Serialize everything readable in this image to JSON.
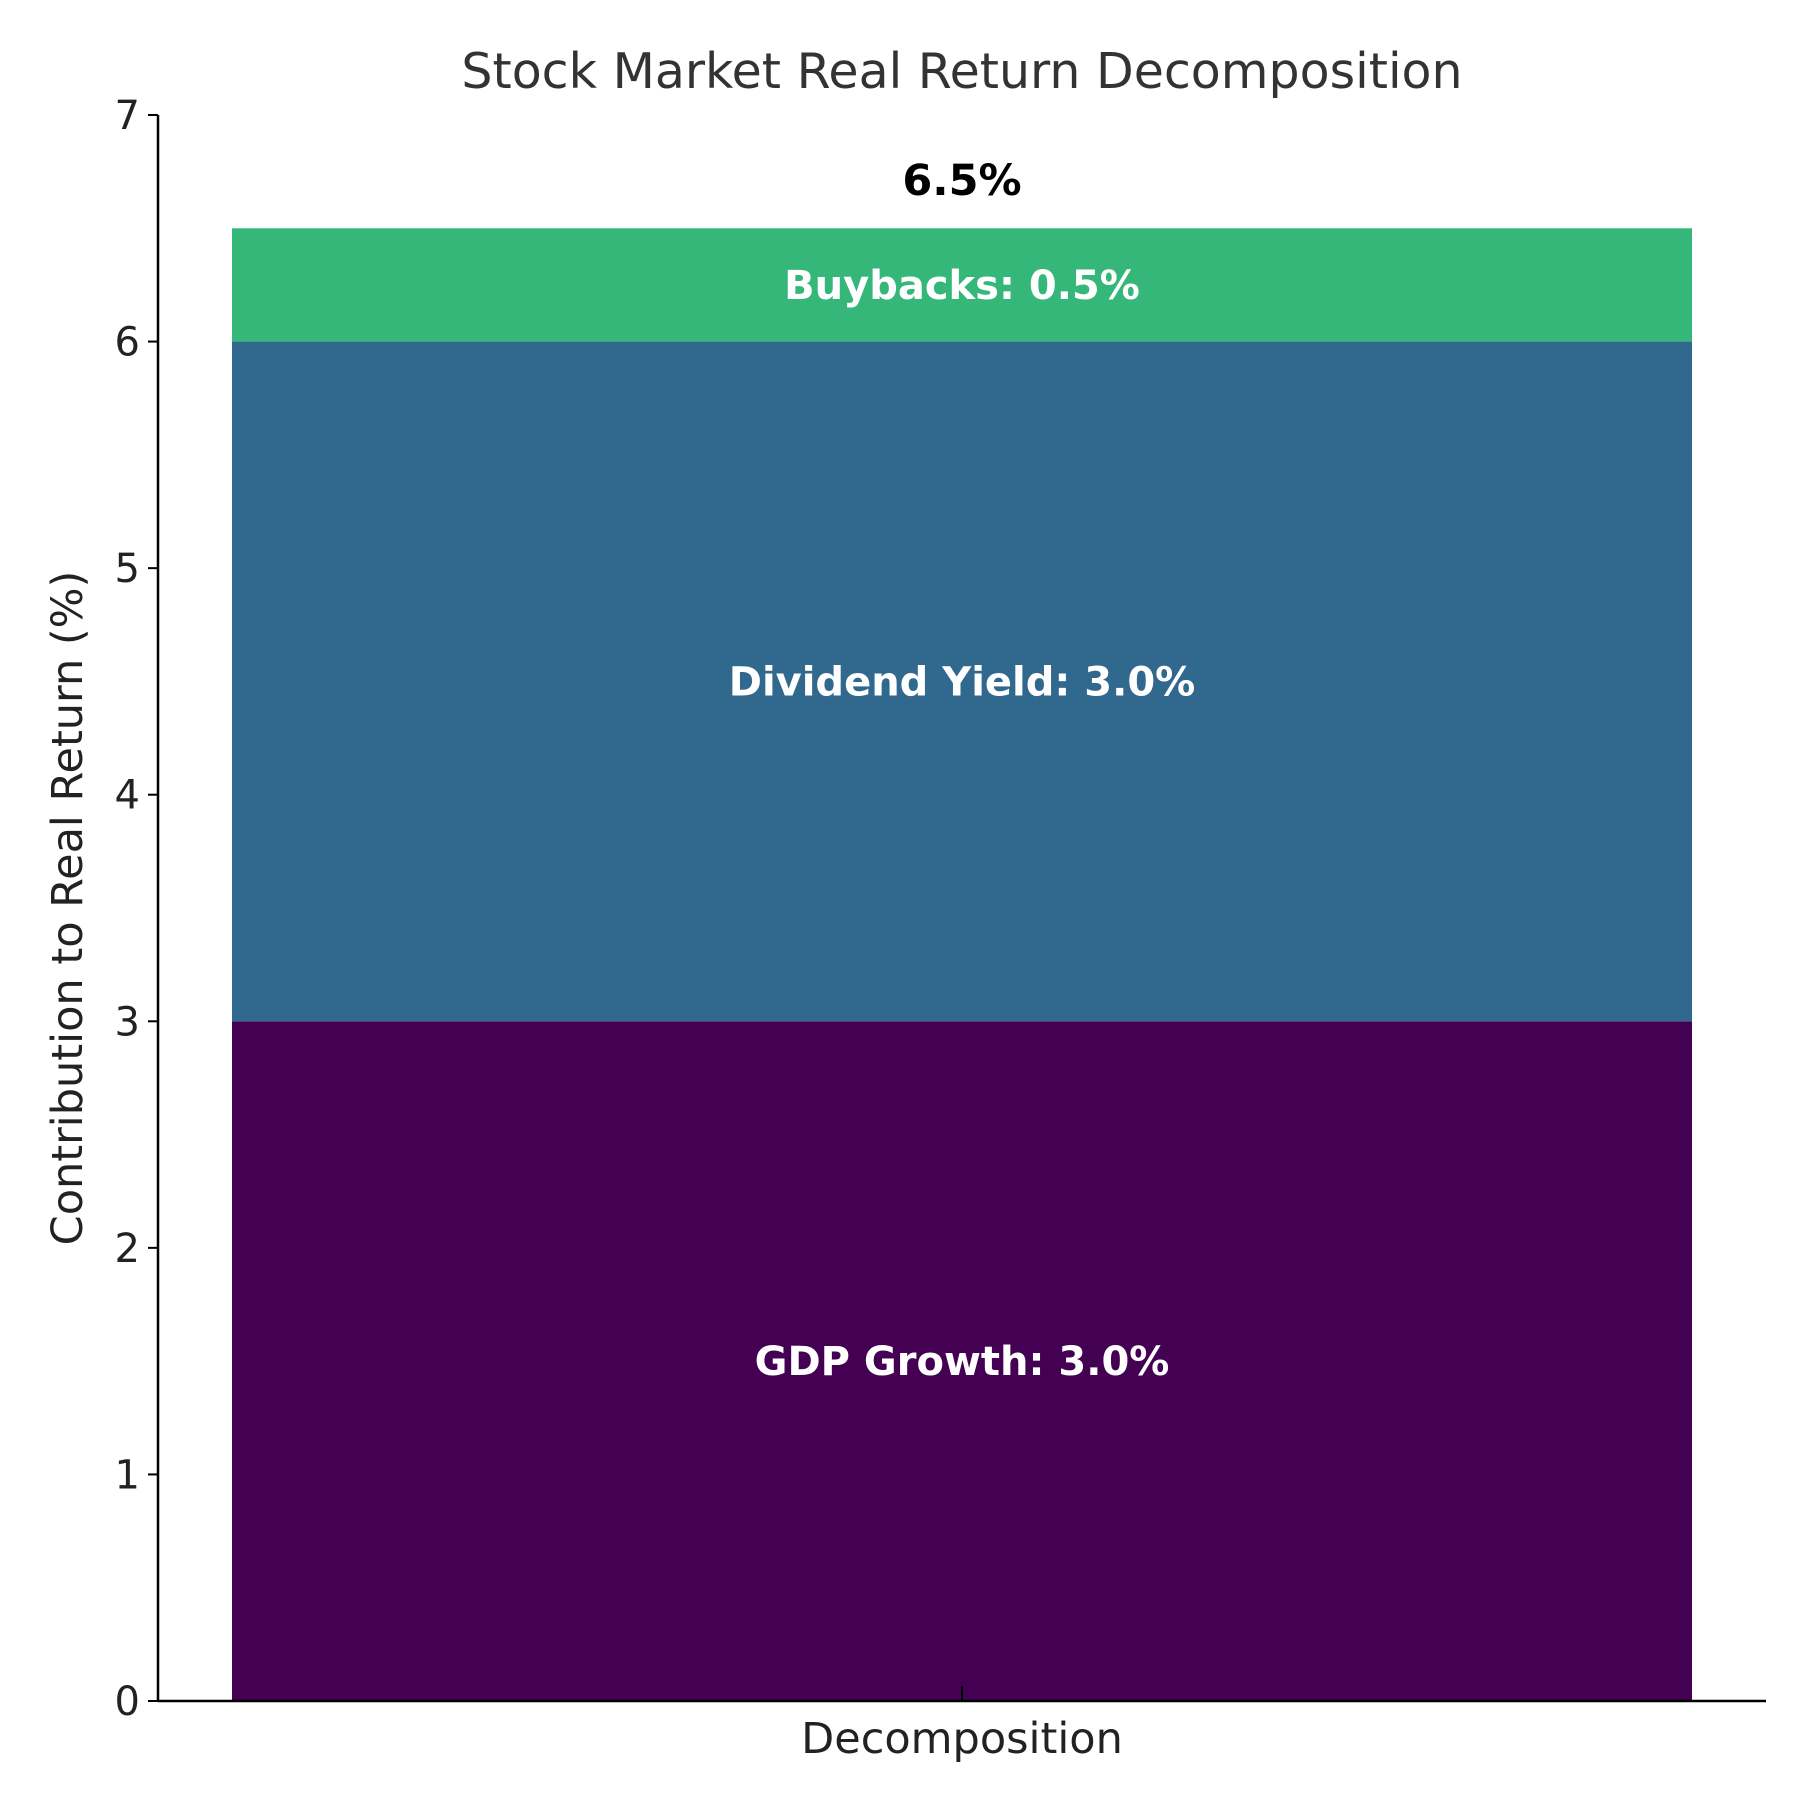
{
  "chart_data": {
    "type": "bar",
    "stacked": true,
    "title": "Stock Market Real Return Decomposition",
    "xlabel": "",
    "ylabel": "Contribution to Real Return (%)",
    "categories": [
      "Decomposition"
    ],
    "ylim": [
      0,
      7
    ],
    "yticks": [
      "0",
      "1",
      "2",
      "3",
      "4",
      "5",
      "6",
      "7"
    ],
    "grid": false,
    "series": [
      {
        "name": "GDP Growth",
        "values": [
          3.0
        ],
        "color": "#440154",
        "label": "GDP Growth: 3.0%"
      },
      {
        "name": "Dividend Yield",
        "values": [
          3.0
        ],
        "color": "#31688e",
        "label": "Dividend Yield: 3.0%"
      },
      {
        "name": "Buybacks",
        "values": [
          0.5
        ],
        "color": "#35b779",
        "label": "Buybacks: 0.5%"
      }
    ],
    "total_label": "6.5%"
  }
}
